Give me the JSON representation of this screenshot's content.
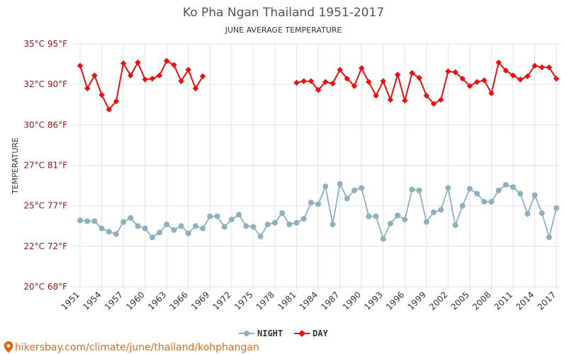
{
  "chart_data": {
    "type": "line",
    "title": "Ko Pha Ngan Thailand 1951-2017",
    "subtitle": "JUNE AVERAGE TEMPERATURE",
    "ylabel": "TEMPERATURE",
    "ylim": [
      20,
      35
    ],
    "yticks": [
      {
        "value": 20,
        "label": "20°C 68°F"
      },
      {
        "value": 22.5,
        "label": "22°C 72°F"
      },
      {
        "value": 25,
        "label": "25°C 77°F"
      },
      {
        "value": 27.5,
        "label": "27°C 81°F"
      },
      {
        "value": 30,
        "label": "30°C 86°F"
      },
      {
        "value": 32.5,
        "label": "32°C 90°F"
      },
      {
        "value": 35,
        "label": "35°C 95°F"
      }
    ],
    "xlim": [
      1951,
      2017
    ],
    "xticks": [
      "1951",
      "1954",
      "1957",
      "1960",
      "1963",
      "1966",
      "1969",
      "1972",
      "1975",
      "1978",
      "1981",
      "1984",
      "1987",
      "1990",
      "1993",
      "1996",
      "1999",
      "2002",
      "2005",
      "2008",
      "2011",
      "2014",
      "2017"
    ],
    "x": [
      1951,
      1952,
      1953,
      1954,
      1955,
      1956,
      1957,
      1958,
      1959,
      1960,
      1961,
      1962,
      1963,
      1964,
      1965,
      1966,
      1967,
      1968,
      1969,
      1970,
      1971,
      1972,
      1973,
      1974,
      1975,
      1976,
      1977,
      1978,
      1979,
      1980,
      1981,
      1982,
      1983,
      1984,
      1985,
      1986,
      1987,
      1988,
      1989,
      1990,
      1991,
      1992,
      1993,
      1994,
      1995,
      1996,
      1997,
      1998,
      1999,
      2000,
      2001,
      2002,
      2003,
      2004,
      2005,
      2006,
      2007,
      2008,
      2009,
      2010,
      2011,
      2012,
      2013,
      2014,
      2015,
      2016,
      2017
    ],
    "series": [
      {
        "name": "NIGHT",
        "color": "#8fb0bc",
        "values": [
          24.1,
          24.05,
          24.05,
          23.6,
          23.4,
          23.25,
          24.0,
          24.25,
          23.75,
          23.6,
          23.05,
          23.35,
          23.85,
          23.5,
          23.75,
          23.3,
          23.75,
          23.6,
          24.35,
          24.35,
          23.7,
          24.15,
          24.45,
          23.75,
          23.7,
          23.1,
          23.85,
          23.95,
          24.55,
          23.85,
          23.95,
          24.2,
          25.2,
          25.1,
          26.2,
          23.85,
          26.35,
          25.45,
          25.95,
          26.1,
          24.35,
          24.35,
          22.95,
          23.9,
          24.4,
          24.15,
          26.0,
          25.95,
          24.0,
          24.6,
          24.75,
          26.1,
          23.8,
          25.0,
          26.05,
          25.75,
          25.25,
          25.25,
          25.95,
          26.3,
          26.15,
          25.75,
          24.5,
          25.65,
          24.55,
          23.05,
          24.85
        ]
      },
      {
        "name": "DAY",
        "color": "#e8110f",
        "values": [
          33.65,
          32.25,
          33.05,
          31.85,
          30.95,
          31.45,
          33.8,
          33.05,
          33.85,
          32.8,
          32.85,
          33.05,
          33.95,
          33.7,
          32.7,
          33.4,
          32.25,
          33.0,
          null,
          null,
          null,
          null,
          null,
          null,
          null,
          null,
          null,
          null,
          null,
          null,
          32.6,
          32.7,
          32.7,
          32.15,
          32.65,
          32.55,
          33.4,
          32.85,
          32.4,
          33.5,
          32.65,
          31.8,
          32.7,
          31.55,
          33.1,
          31.5,
          33.2,
          32.9,
          31.8,
          31.3,
          31.55,
          33.3,
          33.25,
          32.85,
          32.4,
          32.65,
          32.75,
          31.95,
          33.85,
          33.35,
          33.05,
          32.8,
          33.0,
          33.65,
          33.55,
          33.55,
          32.85
        ]
      }
    ],
    "legend_placement": "bottom-center",
    "grid": true
  },
  "source_text": "hikersbay.com/climate/june/thailand/kohphangan",
  "source_icon": "map-pin-icon"
}
